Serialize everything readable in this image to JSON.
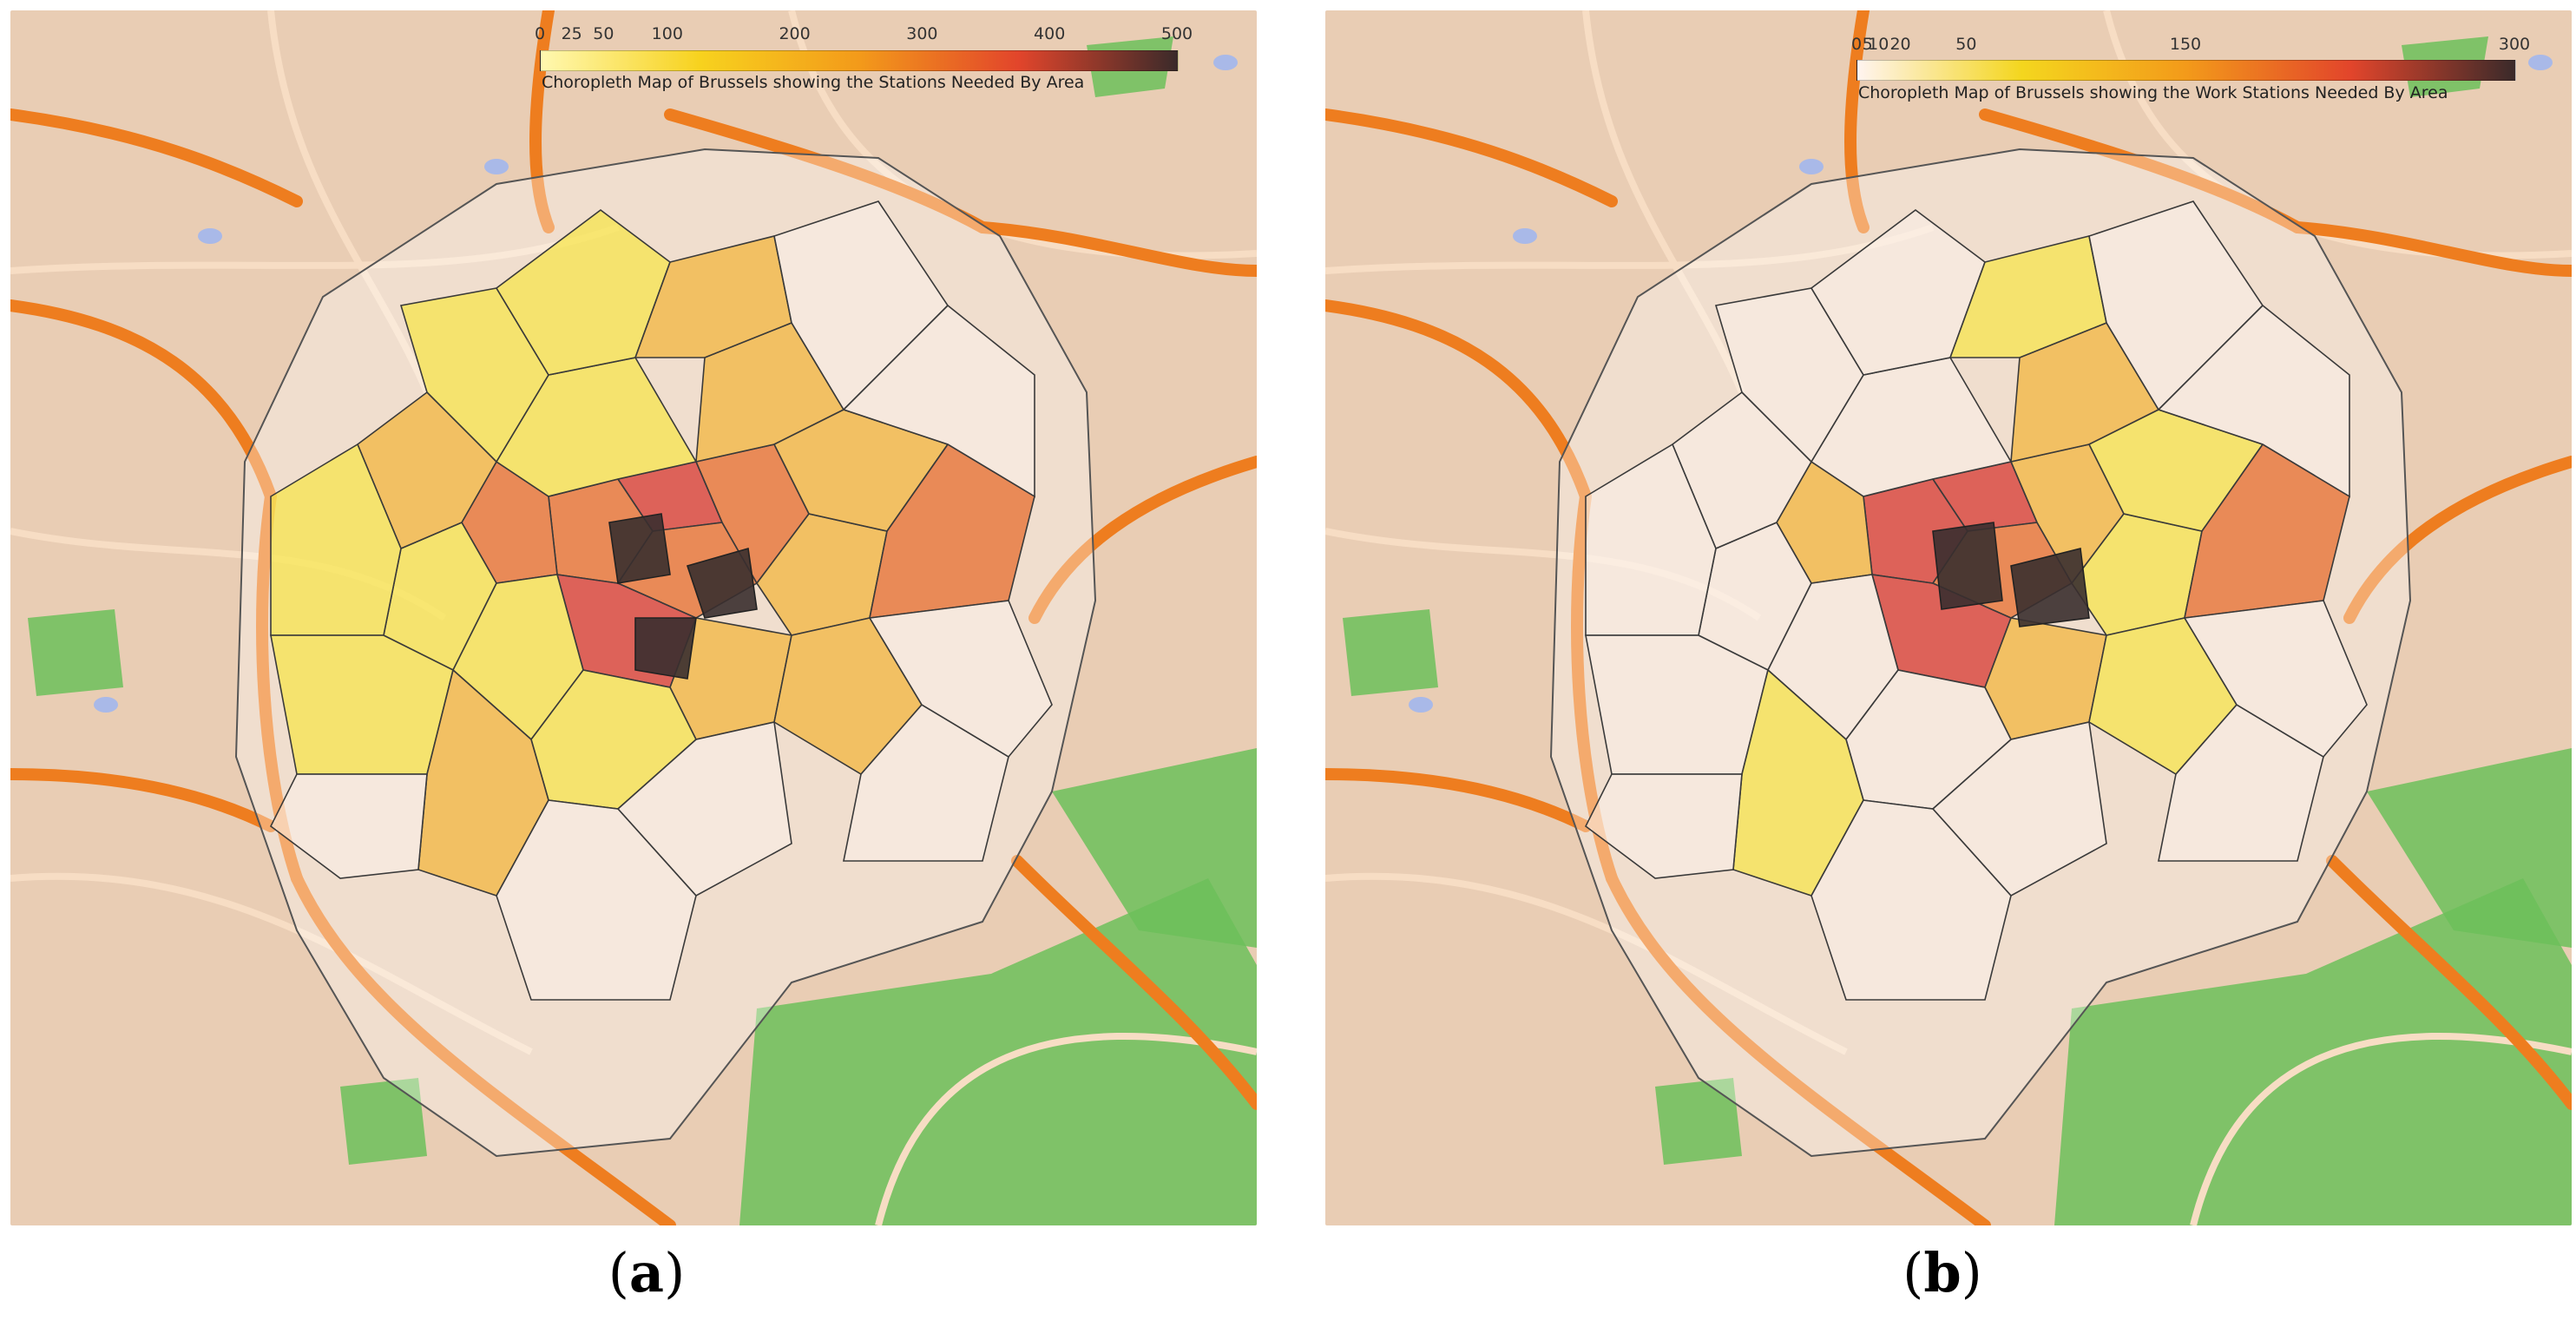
{
  "panels": [
    {
      "id": "a",
      "caption": "a",
      "legend": {
        "title": "Choropleth Map of Brussels showing the Stations Needed By Area",
        "min": 0,
        "max": 500,
        "ticks": [
          0,
          25,
          50,
          100,
          200,
          300,
          400,
          500
        ],
        "colors": [
          "#fff8b0",
          "#f7d21e",
          "#f39a1a",
          "#e2452b",
          "#3a2a2a"
        ]
      },
      "region_levels": [
        "high",
        "very-high",
        "high",
        "very-high",
        "high",
        "high",
        "medium",
        "medium",
        "low",
        "low",
        "low",
        "medium",
        "low",
        "medium",
        "medium",
        "high",
        "medium",
        "low",
        "low",
        "medium",
        "none",
        "none",
        "none",
        "none",
        "low",
        "low",
        "medium",
        "none",
        "none",
        "none"
      ]
    },
    {
      "id": "b",
      "caption": "b",
      "legend": {
        "title": "Choropleth Map of Brussels showing the Work Stations Needed By Area",
        "min": 0,
        "max": 300,
        "ticks": [
          0,
          5,
          10,
          20,
          50,
          150,
          300
        ],
        "tick_labels": [
          "0",
          "5",
          "10",
          "20",
          "50",
          "150",
          "300"
        ],
        "colors": [
          "#fff4f0",
          "#f4d61e",
          "#f39a1a",
          "#e2452b",
          "#3a2a2a"
        ]
      },
      "region_levels": [
        "very-high",
        "very-high",
        "high",
        "very-high",
        "medium",
        "medium",
        "low",
        "medium",
        "none",
        "none",
        "none",
        "low",
        "none",
        "medium",
        "low",
        "high",
        "none",
        "none",
        "none",
        "low",
        "none",
        "none",
        "none",
        "none",
        "none",
        "none",
        "low",
        "none",
        "none",
        "none"
      ]
    }
  ],
  "level_colors": {
    "none": "#fbf1ea",
    "low": "#f7e54a",
    "medium": "#f3b43a",
    "high": "#e66a2a",
    "very-high": "#d6322c"
  },
  "map_colors": {
    "land": "#e9cdb4",
    "park": "#6cbf5a",
    "water": "#a9b9e8",
    "road_major": "#ee7d1f",
    "road_minor": "#f7ddc4"
  }
}
